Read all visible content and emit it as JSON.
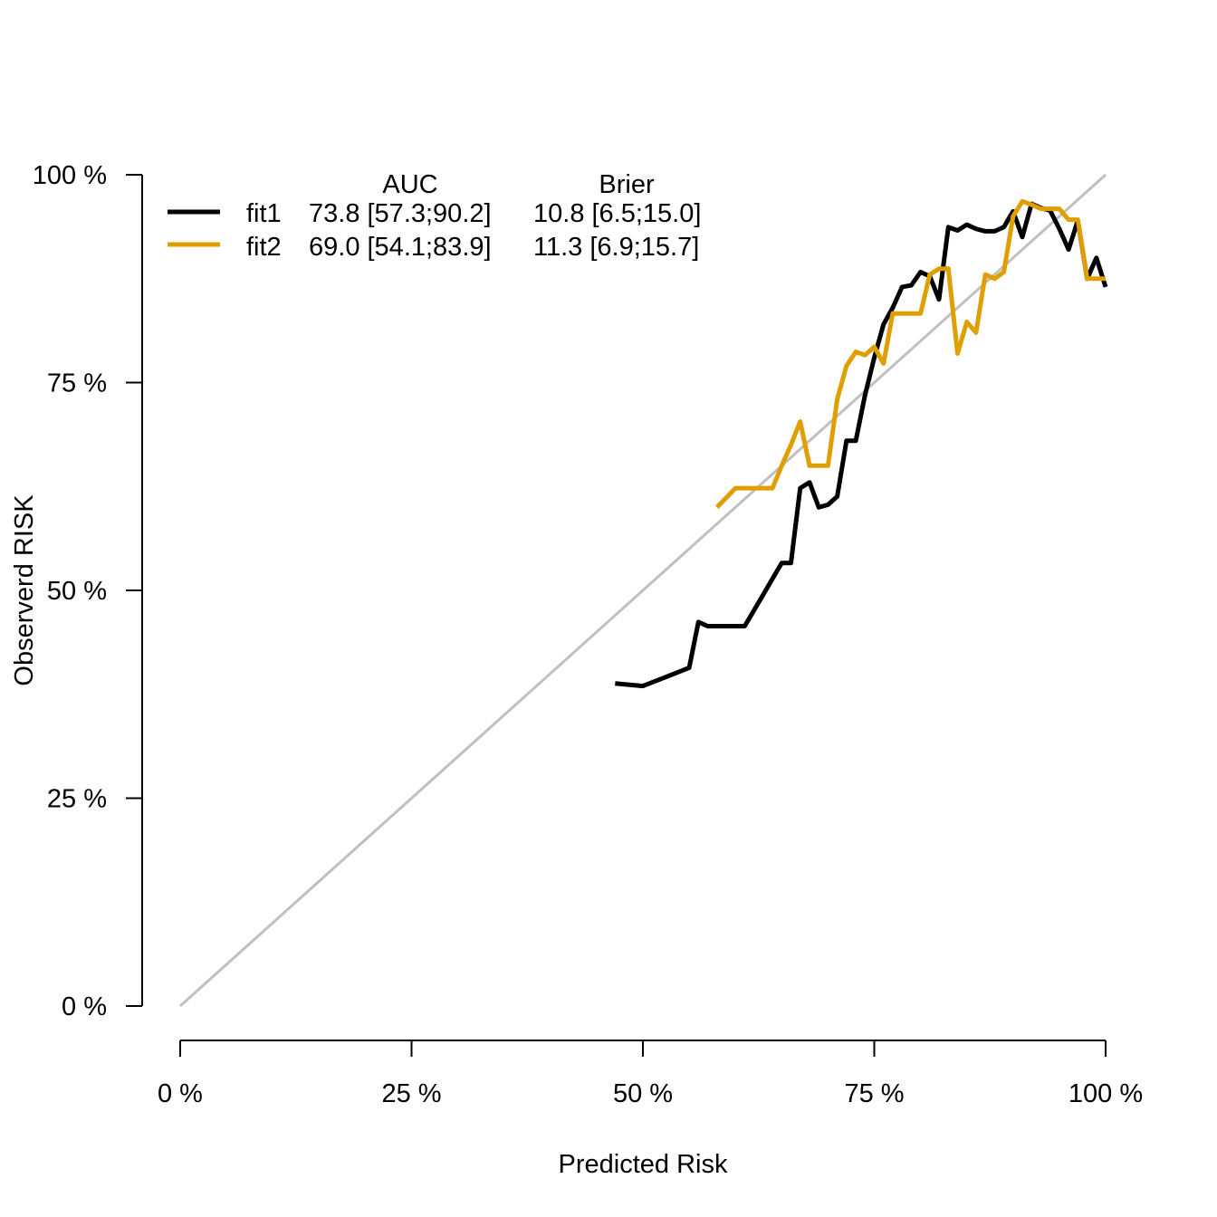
{
  "chart_data": {
    "type": "line",
    "xlabel": "Predicted Risk",
    "ylabel": "Observerd RISK",
    "xlim": [
      0,
      100
    ],
    "ylim": [
      0,
      100
    ],
    "x_ticks": [
      0,
      25,
      50,
      75,
      100
    ],
    "y_ticks": [
      0,
      25,
      50,
      75,
      100
    ],
    "x_tick_labels": [
      "0 %",
      "25 %",
      "50 %",
      "75 %",
      "100 %"
    ],
    "y_tick_labels": [
      "0 %",
      "25 %",
      "50 %",
      "75 %",
      "100 %"
    ],
    "reference_line": {
      "from": [
        0,
        0
      ],
      "to": [
        100,
        100
      ],
      "color": "#c0c0c0"
    },
    "legend": {
      "placement": "top-left",
      "headers": [
        "AUC",
        "Brier"
      ],
      "rows": [
        {
          "series": "fit1",
          "auc": "73.8 [57.3;90.2]",
          "brier": "10.8 [6.5;15.0]"
        },
        {
          "series": "fit2",
          "auc": "69.0 [54.1;83.9]",
          "brier": "11.3 [6.9;15.7]"
        }
      ]
    },
    "series": [
      {
        "name": "fit1",
        "color": "#000000",
        "x": [
          47,
          50,
          53,
          55,
          56,
          57,
          59,
          61,
          63,
          65,
          66,
          67,
          68,
          69,
          70,
          71,
          72,
          73,
          74,
          75,
          76,
          77,
          78,
          79,
          80,
          81,
          82,
          83,
          84,
          85,
          86,
          87,
          88,
          89,
          90,
          91,
          92,
          93,
          94,
          95,
          96,
          97,
          98,
          99,
          100
        ],
        "y": [
          38.8,
          38.5,
          39.8,
          40.7,
          46.2,
          45.7,
          45.7,
          45.7,
          49.5,
          53.3,
          53.3,
          62.3,
          63.0,
          60.0,
          60.3,
          61.3,
          68.0,
          68.0,
          73.5,
          78.0,
          82.0,
          84.0,
          86.5,
          86.7,
          88.3,
          87.8,
          85.0,
          93.7,
          93.3,
          94.0,
          93.5,
          93.2,
          93.2,
          93.7,
          95.6,
          92.5,
          96.5,
          96.0,
          95.7,
          93.5,
          91.0,
          94.5,
          87.5,
          90.0,
          86.5
        ]
      },
      {
        "name": "fit2",
        "color": "#e09f00",
        "x": [
          58,
          60,
          61,
          62,
          63,
          64,
          65,
          66,
          67,
          68,
          69,
          70,
          71,
          72,
          73,
          74,
          75,
          76,
          77,
          78,
          79,
          80,
          81,
          82,
          83,
          84,
          85,
          86,
          87,
          88,
          89,
          90,
          91,
          92,
          93,
          94,
          95,
          96,
          97,
          98,
          99,
          100
        ],
        "y": [
          60.0,
          62.3,
          62.3,
          62.3,
          62.3,
          62.3,
          65.0,
          67.5,
          70.3,
          65.0,
          65.0,
          65.0,
          73.0,
          77.0,
          78.7,
          78.3,
          79.3,
          77.3,
          83.3,
          83.3,
          83.3,
          83.3,
          88.0,
          88.7,
          88.7,
          78.5,
          82.3,
          81.0,
          88.0,
          87.5,
          88.3,
          95.0,
          96.8,
          96.4,
          95.9,
          95.9,
          95.9,
          94.6,
          94.6,
          87.5,
          87.5,
          87.5
        ]
      }
    ]
  }
}
